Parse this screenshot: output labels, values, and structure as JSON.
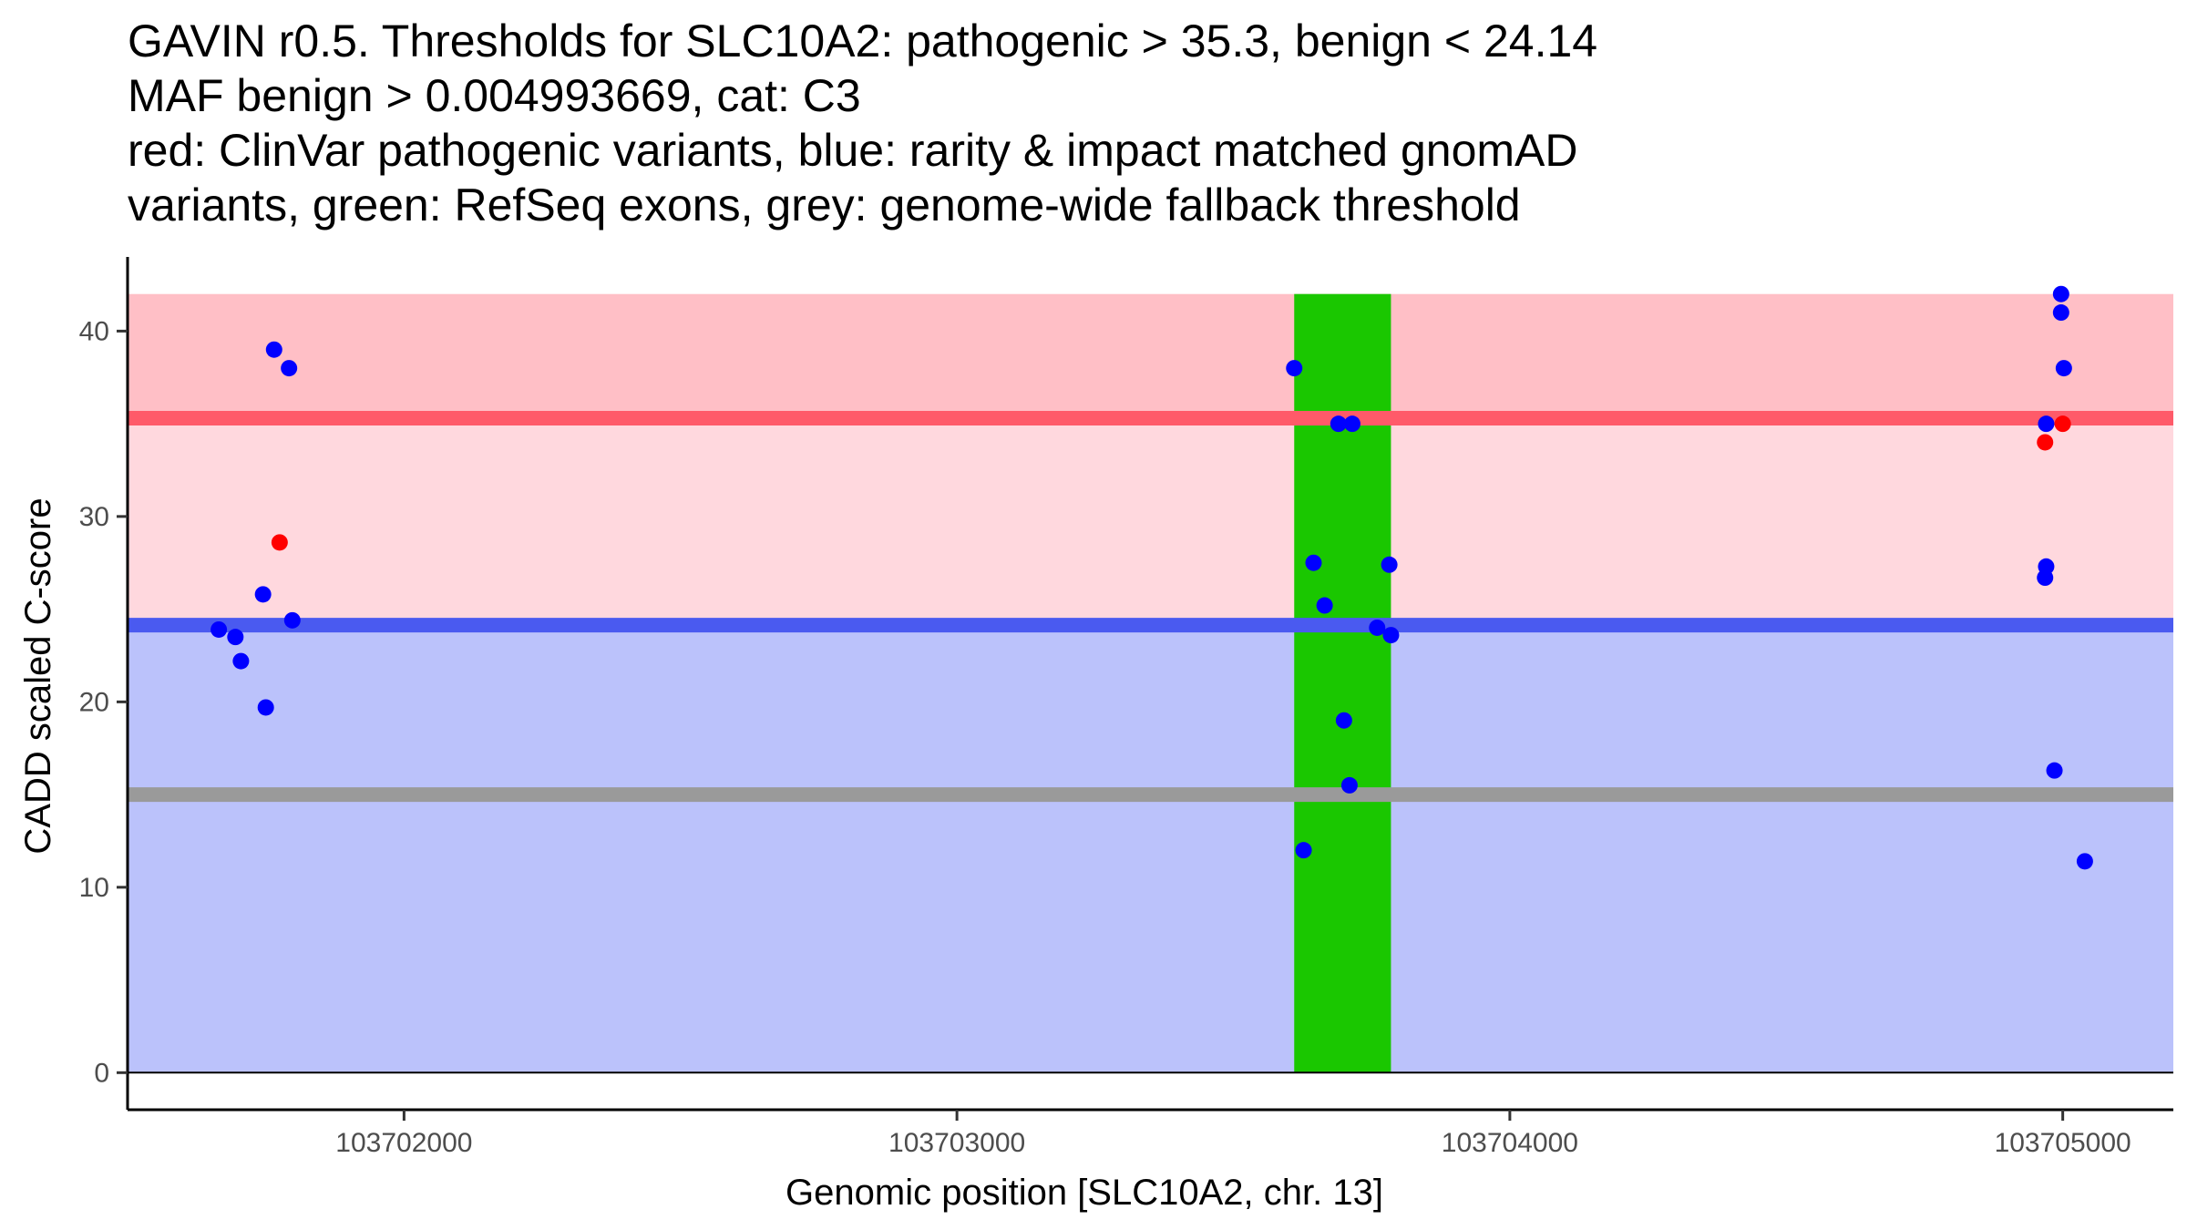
{
  "chart_data": {
    "type": "scatter",
    "title_lines": [
      "GAVIN r0.5. Thresholds for SLC10A2: pathogenic > 35.3, benign < 24.14",
      "MAF benign > 0.004993669, cat: C3",
      "red: ClinVar pathogenic variants, blue: rarity & impact matched gnomAD",
      "variants, green: RefSeq exons, grey: genome-wide fallback threshold"
    ],
    "xlabel": "Genomic position [SLC10A2, chr. 13]",
    "ylabel": "CADD scaled C-score",
    "xlim": [
      103701500,
      103705200
    ],
    "ylim": [
      -2,
      44
    ],
    "x_ticks": [
      103702000,
      103703000,
      103704000,
      103705000
    ],
    "y_ticks": [
      0,
      10,
      20,
      30,
      40
    ],
    "grid": false,
    "thresholds": {
      "pathogenic": 35.3,
      "benign": 24.14,
      "fallback": 15
    },
    "bands": [
      {
        "name": "pathogenic-zone",
        "y0": 35.3,
        "y1": 42,
        "color": "#ffbfc6"
      },
      {
        "name": "intermediate-zone",
        "y0": 24.14,
        "y1": 35.3,
        "color": "#ffd8de"
      },
      {
        "name": "benign-zone",
        "y0": 0,
        "y1": 24.14,
        "color": "#bbc2fb"
      }
    ],
    "threshold_lines": [
      {
        "name": "pathogenic-threshold-line",
        "y": 35.3,
        "color": "#ff5a69"
      },
      {
        "name": "benign-threshold-line",
        "y": 24.14,
        "color": "#4a5af0"
      },
      {
        "name": "fallback-threshold-line",
        "y": 15,
        "color": "#9a9a9a"
      }
    ],
    "exons": [
      {
        "x0": 103703610,
        "x1": 103703785,
        "y0": 0,
        "y1": 42,
        "color": "#1ac700"
      }
    ],
    "series": [
      {
        "name": "gnomAD",
        "color": "#0000ff",
        "points": [
          [
            103701665,
            23.9
          ],
          [
            103701695,
            23.5
          ],
          [
            103701705,
            22.2
          ],
          [
            103701745,
            25.8
          ],
          [
            103701750,
            19.7
          ],
          [
            103701765,
            39.0
          ],
          [
            103701792,
            38.0
          ],
          [
            103701798,
            24.4
          ],
          [
            103703610,
            38.0
          ],
          [
            103703627,
            12.0
          ],
          [
            103703645,
            27.5
          ],
          [
            103703665,
            25.2
          ],
          [
            103703690,
            35.0
          ],
          [
            103703700,
            19.0
          ],
          [
            103703710,
            15.5
          ],
          [
            103703715,
            35.0
          ],
          [
            103703760,
            24.0
          ],
          [
            103703782,
            27.4
          ],
          [
            103703785,
            23.6
          ],
          [
            103704970,
            35.0
          ],
          [
            103704970,
            27.3
          ],
          [
            103704968,
            26.7
          ],
          [
            103704985,
            16.3
          ],
          [
            103704997,
            42.0
          ],
          [
            103704997,
            41.0
          ],
          [
            103705002,
            38.0
          ],
          [
            103705040,
            11.4
          ]
        ]
      },
      {
        "name": "ClinVar",
        "color": "#ff0000",
        "points": [
          [
            103701775,
            28.6
          ],
          [
            103704968,
            34.0
          ],
          [
            103705000,
            35.0
          ]
        ]
      }
    ]
  }
}
